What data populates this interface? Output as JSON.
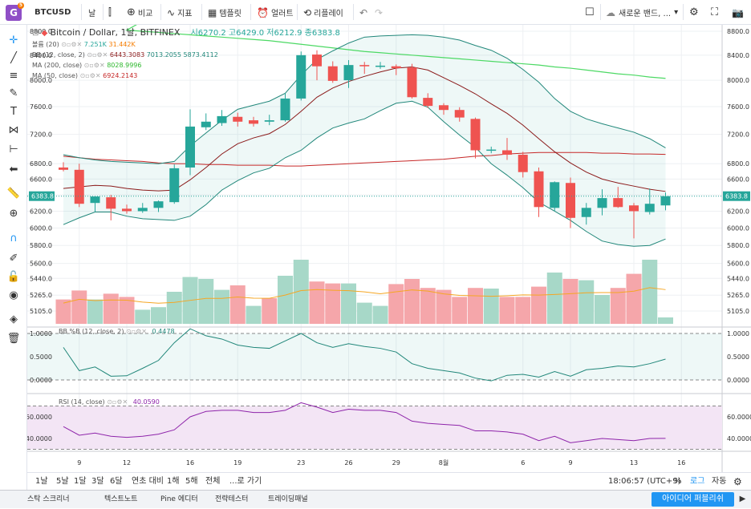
{
  "header": {
    "logo": "G",
    "logo_badge": "5",
    "symbol": "BTCUSD",
    "interval": "날",
    "compare_label": "비교",
    "indicators_label": "지표",
    "templates_label": "템플릿",
    "alert_label": "얼러트",
    "replay_label": "리플레이",
    "new_band_label": "새로운 밴드, ...",
    "icons": [
      "candles-icon",
      "compare-icon",
      "indicators-icon",
      "templates-icon",
      "alert-icon",
      "replay-icon",
      "undo-icon",
      "redo-icon",
      "fullscreen-icon",
      "cloud-icon",
      "settings-icon",
      "fullscreen-icon",
      "camera-icon"
    ]
  },
  "left_toolbar": {
    "icons": [
      "crosshair-icon",
      "trendline-icon",
      "fib-icon",
      "brush-icon",
      "text-icon",
      "pattern-icon",
      "prediction-icon",
      "arrow-left-icon",
      "ruler-icon",
      "zoom-icon",
      "magnet-icon",
      "lock-drawing-icon",
      "unlock-icon",
      "eye-icon",
      "layers-icon",
      "trash-icon"
    ]
  },
  "legend": {
    "title": "Bitcoin / Dollar, 1날, BITFINEX",
    "ohlc": "시6270.2  고6429.0  저6212.9  종6383.8",
    "vol": {
      "name": "볼륨 (20)",
      "v1": "7.251K",
      "v2": "31.442K"
    },
    "bb": {
      "name": "BB (12, close, 2)",
      "v1": "6443.3083",
      "v2": "7013.2055",
      "v3": "5873.4112"
    },
    "ma200": {
      "name": "MA (200, close)",
      "v": "8028.9996"
    },
    "ma50": {
      "name": "MA (50, close)",
      "v": "6924.2143"
    }
  },
  "bbb_legend": {
    "name": "BB %B (12, close, 2)",
    "v": "0.4478"
  },
  "rsi_legend": {
    "name": "RSI (14, close)",
    "v": "40.0590"
  },
  "price_label": "6383.8",
  "chart_data": [
    {
      "type": "candlestick",
      "title": "Bitcoin / Dollar, 1날, BITFINEX",
      "ylim": [
        5000,
        8900
      ],
      "y_ticks": [
        8800,
        8400,
        8000,
        7600,
        7200,
        6800,
        6600,
        6400,
        6200,
        6000,
        5800,
        5600,
        5440,
        5265,
        5105
      ],
      "y_tick_labels": [
        "8800.0",
        "8400.0",
        "8000.0",
        "7600.0",
        "7200.0",
        "6800.0",
        "6600.0",
        "6400.0",
        "6200.0",
        "6000.0",
        "5800.0",
        "5600.0",
        "5440.0",
        "5265.0",
        "5105.0"
      ],
      "x_tick_labels": [
        {
          "i": 1,
          "label": "9"
        },
        {
          "i": 4,
          "label": "12"
        },
        {
          "i": 8,
          "label": "16"
        },
        {
          "i": 11,
          "label": "19"
        },
        {
          "i": 15,
          "label": "23"
        },
        {
          "i": 18,
          "label": "26"
        },
        {
          "i": 21,
          "label": "29"
        },
        {
          "i": 24,
          "label": "8월"
        },
        {
          "i": 29,
          "label": "6"
        },
        {
          "i": 32,
          "label": "9"
        },
        {
          "i": 36,
          "label": "13"
        },
        {
          "i": 39,
          "label": "16"
        }
      ],
      "candles": [
        {
          "o": 6750,
          "h": 6820,
          "l": 6700,
          "c": 6720
        },
        {
          "o": 6720,
          "h": 6800,
          "l": 6250,
          "c": 6290
        },
        {
          "o": 6300,
          "h": 6380,
          "l": 6190,
          "c": 6380
        },
        {
          "o": 6370,
          "h": 6400,
          "l": 6090,
          "c": 6230
        },
        {
          "o": 6230,
          "h": 6280,
          "l": 6170,
          "c": 6200
        },
        {
          "o": 6200,
          "h": 6300,
          "l": 6180,
          "c": 6240
        },
        {
          "o": 6240,
          "h": 6330,
          "l": 6190,
          "c": 6320
        },
        {
          "o": 6310,
          "h": 6790,
          "l": 6290,
          "c": 6740
        },
        {
          "o": 6750,
          "h": 7560,
          "l": 6650,
          "c": 7310
        },
        {
          "o": 7300,
          "h": 7500,
          "l": 7260,
          "c": 7380
        },
        {
          "o": 7360,
          "h": 7550,
          "l": 7320,
          "c": 7460
        },
        {
          "o": 7450,
          "h": 7510,
          "l": 7310,
          "c": 7380
        },
        {
          "o": 7400,
          "h": 7450,
          "l": 7310,
          "c": 7350
        },
        {
          "o": 7380,
          "h": 7480,
          "l": 7330,
          "c": 7400
        },
        {
          "o": 7400,
          "h": 7800,
          "l": 7380,
          "c": 7720
        },
        {
          "o": 7720,
          "h": 8460,
          "l": 7690,
          "c": 8400
        },
        {
          "o": 8410,
          "h": 8480,
          "l": 8000,
          "c": 8220
        },
        {
          "o": 8220,
          "h": 8300,
          "l": 7960,
          "c": 7990
        },
        {
          "o": 8000,
          "h": 8320,
          "l": 7880,
          "c": 8240
        },
        {
          "o": 8240,
          "h": 8290,
          "l": 8100,
          "c": 8220
        },
        {
          "o": 8220,
          "h": 8290,
          "l": 8180,
          "c": 8230
        },
        {
          "o": 8220,
          "h": 8250,
          "l": 8080,
          "c": 8190
        },
        {
          "o": 8200,
          "h": 8260,
          "l": 7720,
          "c": 7740
        },
        {
          "o": 7730,
          "h": 7800,
          "l": 7580,
          "c": 7610
        },
        {
          "o": 7620,
          "h": 7650,
          "l": 7480,
          "c": 7550
        },
        {
          "o": 7550,
          "h": 7590,
          "l": 7380,
          "c": 7440
        },
        {
          "o": 7420,
          "h": 7440,
          "l": 6870,
          "c": 6980
        },
        {
          "o": 6980,
          "h": 7030,
          "l": 6940,
          "c": 6990
        },
        {
          "o": 6980,
          "h": 7150,
          "l": 6850,
          "c": 6920
        },
        {
          "o": 6920,
          "h": 6960,
          "l": 6620,
          "c": 6690
        },
        {
          "o": 6700,
          "h": 6750,
          "l": 6130,
          "c": 6250
        },
        {
          "o": 6240,
          "h": 6570,
          "l": 6200,
          "c": 6560
        },
        {
          "o": 6550,
          "h": 6620,
          "l": 6000,
          "c": 6120
        },
        {
          "o": 6130,
          "h": 6300,
          "l": 6040,
          "c": 6240
        },
        {
          "o": 6240,
          "h": 6470,
          "l": 6150,
          "c": 6360
        },
        {
          "o": 6360,
          "h": 6500,
          "l": 6240,
          "c": 6250
        },
        {
          "o": 6270,
          "h": 6300,
          "l": 5880,
          "c": 6200
        },
        {
          "o": 6190,
          "h": 6480,
          "l": 6160,
          "c": 6290
        },
        {
          "o": 6270,
          "h": 6430,
          "l": 6210,
          "c": 6384
        }
      ],
      "volume": [
        {
          "v": 0.38,
          "up": false
        },
        {
          "v": 0.52,
          "up": false
        },
        {
          "v": 0.38,
          "up": true
        },
        {
          "v": 0.47,
          "up": false
        },
        {
          "v": 0.42,
          "up": false
        },
        {
          "v": 0.22,
          "up": true
        },
        {
          "v": 0.26,
          "up": true
        },
        {
          "v": 0.5,
          "up": true
        },
        {
          "v": 0.73,
          "up": true
        },
        {
          "v": 0.7,
          "up": true
        },
        {
          "v": 0.53,
          "up": true
        },
        {
          "v": 0.6,
          "up": false
        },
        {
          "v": 0.28,
          "up": true
        },
        {
          "v": 0.4,
          "up": false
        },
        {
          "v": 0.75,
          "up": true
        },
        {
          "v": 1.0,
          "up": true
        },
        {
          "v": 0.66,
          "up": false
        },
        {
          "v": 0.63,
          "up": false
        },
        {
          "v": 0.63,
          "up": true
        },
        {
          "v": 0.33,
          "up": true
        },
        {
          "v": 0.28,
          "up": true
        },
        {
          "v": 0.62,
          "up": false
        },
        {
          "v": 0.7,
          "up": false
        },
        {
          "v": 0.56,
          "up": false
        },
        {
          "v": 0.53,
          "up": false
        },
        {
          "v": 0.42,
          "up": false
        },
        {
          "v": 0.56,
          "up": false
        },
        {
          "v": 0.55,
          "up": true
        },
        {
          "v": 0.42,
          "up": false
        },
        {
          "v": 0.42,
          "up": false
        },
        {
          "v": 0.58,
          "up": false
        },
        {
          "v": 0.8,
          "up": true
        },
        {
          "v": 0.7,
          "up": false
        },
        {
          "v": 0.68,
          "up": true
        },
        {
          "v": 0.45,
          "up": true
        },
        {
          "v": 0.56,
          "up": false
        },
        {
          "v": 0.78,
          "up": false
        },
        {
          "v": 1.0,
          "up": true
        },
        {
          "v": 0.1,
          "up": true
        }
      ],
      "bb_upper": [
        6920,
        6880,
        6850,
        6830,
        6820,
        6810,
        6800,
        6830,
        7040,
        7220,
        7400,
        7560,
        7620,
        7680,
        7800,
        8080,
        8330,
        8470,
        8600,
        8700,
        8720,
        8730,
        8740,
        8730,
        8700,
        8650,
        8560,
        8480,
        8350,
        8170,
        7970,
        7720,
        7530,
        7420,
        7350,
        7290,
        7230,
        7140,
        7013
      ],
      "bb_basis": [
        6480,
        6500,
        6520,
        6510,
        6480,
        6460,
        6450,
        6460,
        6590,
        6750,
        6930,
        7070,
        7150,
        7210,
        7340,
        7530,
        7740,
        7880,
        7980,
        8060,
        8130,
        8190,
        8210,
        8160,
        8040,
        7920,
        7790,
        7640,
        7500,
        7330,
        7140,
        6960,
        6810,
        6690,
        6600,
        6550,
        6510,
        6470,
        6443
      ],
      "bb_lower": [
        6040,
        6120,
        6190,
        6190,
        6140,
        6110,
        6100,
        6090,
        6140,
        6280,
        6460,
        6580,
        6680,
        6740,
        6880,
        6980,
        7150,
        7290,
        7360,
        7420,
        7540,
        7650,
        7680,
        7590,
        7380,
        7190,
        7020,
        6800,
        6650,
        6490,
        6310,
        6200,
        6090,
        5960,
        5850,
        5810,
        5790,
        5800,
        5873
      ],
      "ma200": [
        8900,
        8880,
        8860,
        8840,
        8820,
        8800,
        8780,
        8760,
        8740,
        8720,
        8700,
        8680,
        8660,
        8640,
        8610,
        8580,
        8550,
        8520,
        8490,
        8460,
        8440,
        8420,
        8400,
        8380,
        8360,
        8340,
        8320,
        8300,
        8280,
        8260,
        8240,
        8210,
        8190,
        8160,
        8130,
        8100,
        8080,
        8050,
        8029
      ],
      "ma50": [
        6900,
        6880,
        6860,
        6850,
        6840,
        6830,
        6810,
        6800,
        6800,
        6790,
        6790,
        6780,
        6780,
        6780,
        6770,
        6770,
        6780,
        6790,
        6800,
        6810,
        6820,
        6830,
        6840,
        6850,
        6860,
        6880,
        6900,
        6910,
        6930,
        6940,
        6950,
        6950,
        6950,
        6950,
        6940,
        6940,
        6930,
        6930,
        6924
      ]
    },
    {
      "type": "line",
      "title": "BB %B (12, close, 2)",
      "ylim": [
        -0.08,
        1.1
      ],
      "y_tick_labels": [
        "1.0000",
        "0.5000",
        "0.0000"
      ],
      "y_ticks": [
        1.0,
        0.5,
        0.0
      ],
      "values": [
        0.7,
        0.2,
        0.28,
        0.08,
        0.09,
        0.25,
        0.42,
        0.8,
        1.1,
        0.95,
        0.88,
        0.75,
        0.7,
        0.68,
        0.84,
        1.0,
        0.8,
        0.7,
        0.78,
        0.72,
        0.68,
        0.6,
        0.35,
        0.25,
        0.2,
        0.15,
        0.04,
        -0.02,
        0.1,
        0.12,
        0.06,
        0.18,
        0.08,
        0.22,
        0.25,
        0.3,
        0.28,
        0.35,
        0.4478
      ]
    },
    {
      "type": "line",
      "title": "RSI (14, close)",
      "ylim": [
        30,
        75
      ],
      "y_tick_labels": [
        "60.0000",
        "40.0000"
      ],
      "y_ticks": [
        60,
        40
      ],
      "band": [
        30,
        70
      ],
      "values": [
        51,
        43,
        45,
        42,
        41,
        42,
        44,
        48,
        60,
        65,
        66,
        66,
        64,
        64,
        66,
        73,
        69,
        64,
        67,
        66,
        66,
        64,
        56,
        54,
        53,
        52,
        47,
        47,
        46,
        44,
        38,
        42,
        36,
        38,
        40,
        39,
        38,
        40,
        40.06
      ]
    }
  ],
  "bottom_bar": {
    "ranges": [
      "1날",
      "5날",
      "1달",
      "3달",
      "6달",
      "연초 대비",
      "1해",
      "5해",
      "전체"
    ],
    "goto": "...로 가기",
    "time": "18:06:57 (UTC+9)",
    "percent": "%",
    "log": "로그",
    "auto": "자동"
  },
  "footer": {
    "tabs": [
      "스탁 스크리너",
      "텍스트노트",
      "Pine 에디터",
      "전략테스터",
      "트레이딩패널"
    ],
    "publish": "아이디어 퍼블리쉬"
  },
  "colors": {
    "up": "#26a69a",
    "down": "#ef5350",
    "vol_up": "#a7d8c8",
    "vol_down": "#f5a6aa",
    "bb_line": "#21877a",
    "bb_basis": "#8b1a1a",
    "ma200": "#4cd964",
    "ma50": "#c62828",
    "rsi": "#8e24aa",
    "rsi_fill": "#f3e5f5"
  }
}
